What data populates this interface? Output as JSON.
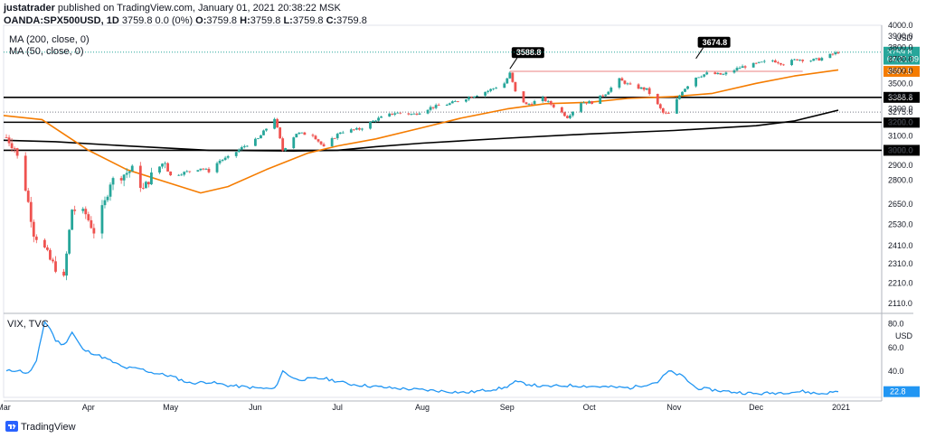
{
  "header": {
    "author": "justatrader",
    "published": "published on TradingView.com, January 01, 2021 20:38:22 MSK",
    "symbol": "OANDA:SPX500USD, 1D",
    "quote": "3759.8 0.0 (0%)",
    "o_label": "O:",
    "o_value": "3759.8",
    "h_label": "H:",
    "h_value": "3759.8",
    "l_label": "L:",
    "l_value": "3759.8",
    "c_label": "C:",
    "c_value": "3759.8"
  },
  "indicators": {
    "ma200": "MA (200, close, 0)",
    "ma50": "MA (50, close, 0)",
    "vix": "VIX, TVC"
  },
  "logo": {
    "text": "TradingView"
  },
  "colors": {
    "up": "#26a69a",
    "down": "#ef5350",
    "ma50": "#f57c00",
    "ma200": "#000000",
    "vix": "#2196f3",
    "level_line": "#000000",
    "resistance": "#ef9a9a"
  },
  "chart_data": [
    {
      "type": "candlestick",
      "title": "OANDA:SPX500USD, 1D",
      "y_scale": "log",
      "ylim": [
        2070,
        4000
      ],
      "y_ticks": [
        "4000.0",
        "3900.0",
        "3800.0",
        "3700.0",
        "3600.0",
        "3500.0",
        "3400.0",
        "3300.0",
        "3200.0",
        "3100.0",
        "3000.0",
        "2900.0",
        "2800.0",
        "2650.0",
        "2530.0",
        "2410.0",
        "2310.0",
        "2210.0",
        "2110.0"
      ],
      "x_ticks": [
        "Mar",
        "Apr",
        "May",
        "Jun",
        "Jul",
        "Aug",
        "Sep",
        "Oct",
        "Nov",
        "Dec",
        "2021"
      ],
      "x_range": [
        "2020-03-01",
        "2021-01-01"
      ],
      "price_axis_label": "USD",
      "horizontal_levels": [
        {
          "value": 3388.8,
          "label": "3388.8"
        },
        {
          "value": 3200.0,
          "label": "3200.0"
        },
        {
          "value": 3000.0,
          "label": "3000.0"
        }
      ],
      "dotted_levels": [
        {
          "value": 3275.6,
          "label": "3275.6"
        }
      ],
      "resistance_line": {
        "value": 3597.5,
        "from": "2020-09-02",
        "to": "2020-12-18"
      },
      "annotations": [
        {
          "date": "2020-09-02",
          "value": 3588.8,
          "label": "3588.8"
        },
        {
          "date": "2020-11-09",
          "value": 3674.8,
          "label": "3674.8"
        }
      ],
      "price_tags": [
        {
          "value": 3759.8,
          "label": "3759.8",
          "color": "#26a69a"
        },
        {
          "value": 3700.0,
          "label": "04:21:39",
          "color": "#26a69a"
        },
        {
          "value": 3597.5,
          "label": "3597.5",
          "color": "#f57c00"
        }
      ],
      "series": [
        {
          "name": "SPX500USD",
          "kind": "close",
          "points": [
            [
              "2020-03-02",
              3090
            ],
            [
              "2020-03-05",
              3020
            ],
            [
              "2020-03-09",
              2750
            ],
            [
              "2020-03-12",
              2480
            ],
            [
              "2020-03-16",
              2390
            ],
            [
              "2020-03-18",
              2330
            ],
            [
              "2020-03-20",
              2290
            ],
            [
              "2020-03-23",
              2230
            ],
            [
              "2020-03-26",
              2620
            ],
            [
              "2020-03-31",
              2590
            ],
            [
              "2020-04-03",
              2490
            ],
            [
              "2020-04-07",
              2660
            ],
            [
              "2020-04-09",
              2790
            ],
            [
              "2020-04-14",
              2840
            ],
            [
              "2020-04-17",
              2870
            ],
            [
              "2020-04-21",
              2740
            ],
            [
              "2020-04-24",
              2830
            ],
            [
              "2020-04-29",
              2930
            ],
            [
              "2020-05-01",
              2830
            ],
            [
              "2020-05-06",
              2850
            ],
            [
              "2020-05-12",
              2880
            ],
            [
              "2020-05-15",
              2860
            ],
            [
              "2020-05-19",
              2930
            ],
            [
              "2020-05-22",
              2950
            ],
            [
              "2020-05-28",
              3030
            ],
            [
              "2020-06-02",
              3080
            ],
            [
              "2020-06-08",
              3230
            ],
            [
              "2020-06-11",
              3000
            ],
            [
              "2020-06-16",
              3120
            ],
            [
              "2020-06-22",
              3110
            ],
            [
              "2020-06-26",
              3020
            ],
            [
              "2020-07-02",
              3130
            ],
            [
              "2020-07-09",
              3150
            ],
            [
              "2020-07-15",
              3220
            ],
            [
              "2020-07-22",
              3270
            ],
            [
              "2020-07-29",
              3260
            ],
            [
              "2020-08-04",
              3310
            ],
            [
              "2020-08-11",
              3340
            ],
            [
              "2020-08-18",
              3390
            ],
            [
              "2020-08-25",
              3440
            ],
            [
              "2020-08-31",
              3500
            ],
            [
              "2020-09-02",
              3580
            ],
            [
              "2020-09-04",
              3430
            ],
            [
              "2020-09-08",
              3330
            ],
            [
              "2020-09-14",
              3380
            ],
            [
              "2020-09-18",
              3320
            ],
            [
              "2020-09-23",
              3240
            ],
            [
              "2020-09-28",
              3350
            ],
            [
              "2020-10-02",
              3350
            ],
            [
              "2020-10-07",
              3420
            ],
            [
              "2020-10-12",
              3530
            ],
            [
              "2020-10-16",
              3480
            ],
            [
              "2020-10-22",
              3450
            ],
            [
              "2020-10-28",
              3270
            ],
            [
              "2020-10-30",
              3260
            ],
            [
              "2020-11-04",
              3440
            ],
            [
              "2020-11-09",
              3550
            ],
            [
              "2020-11-13",
              3580
            ],
            [
              "2020-11-19",
              3570
            ],
            [
              "2020-11-25",
              3630
            ],
            [
              "2020-12-01",
              3660
            ],
            [
              "2020-12-07",
              3690
            ],
            [
              "2020-12-11",
              3660
            ],
            [
              "2020-12-16",
              3700
            ],
            [
              "2020-12-21",
              3690
            ],
            [
              "2020-12-24",
              3700
            ],
            [
              "2020-12-31",
              3759.8
            ]
          ]
        },
        {
          "name": "MA (50, close, 0)",
          "kind": "line",
          "points": [
            [
              "2020-03-01",
              3250
            ],
            [
              "2020-03-15",
              3220
            ],
            [
              "2020-04-01",
              3000
            ],
            [
              "2020-04-15",
              2870
            ],
            [
              "2020-05-01",
              2780
            ],
            [
              "2020-05-12",
              2720
            ],
            [
              "2020-05-22",
              2760
            ],
            [
              "2020-06-05",
              2870
            ],
            [
              "2020-06-20",
              2980
            ],
            [
              "2020-07-01",
              3030
            ],
            [
              "2020-07-15",
              3080
            ],
            [
              "2020-08-01",
              3160
            ],
            [
              "2020-08-15",
              3230
            ],
            [
              "2020-09-01",
              3300
            ],
            [
              "2020-09-15",
              3340
            ],
            [
              "2020-10-01",
              3350
            ],
            [
              "2020-10-15",
              3380
            ],
            [
              "2020-11-01",
              3395
            ],
            [
              "2020-11-15",
              3420
            ],
            [
              "2020-12-01",
              3500
            ],
            [
              "2020-12-15",
              3560
            ],
            [
              "2020-12-31",
              3610
            ]
          ]
        },
        {
          "name": "MA (200, close, 0)",
          "kind": "line",
          "points": [
            [
              "2020-03-01",
              3070
            ],
            [
              "2020-03-20",
              3060
            ],
            [
              "2020-04-15",
              3030
            ],
            [
              "2020-05-15",
              3000
            ],
            [
              "2020-06-15",
              2995
            ],
            [
              "2020-07-01",
              3000
            ],
            [
              "2020-07-15",
              3025
            ],
            [
              "2020-08-01",
              3050
            ],
            [
              "2020-09-01",
              3085
            ],
            [
              "2020-10-01",
              3115
            ],
            [
              "2020-11-01",
              3140
            ],
            [
              "2020-12-01",
              3175
            ],
            [
              "2020-12-15",
              3210
            ],
            [
              "2020-12-31",
              3290
            ]
          ]
        }
      ]
    },
    {
      "type": "line",
      "title": "VIX, TVC",
      "axis_label": "USD",
      "ylim": [
        18,
        88
      ],
      "y_ticks": [
        "80.0",
        "60.0",
        "40.0"
      ],
      "last_value_tag": {
        "value": 22.8,
        "label": "22.8"
      },
      "series": [
        {
          "name": "VIX, TVC",
          "points": [
            [
              "2020-03-02",
              40
            ],
            [
              "2020-03-06",
              41
            ],
            [
              "2020-03-10",
              38
            ],
            [
              "2020-03-13",
              48
            ],
            [
              "2020-03-16",
              82
            ],
            [
              "2020-03-18",
              76
            ],
            [
              "2020-03-20",
              66
            ],
            [
              "2020-03-23",
              62
            ],
            [
              "2020-03-26",
              73
            ],
            [
              "2020-03-30",
              58
            ],
            [
              "2020-04-03",
              55
            ],
            [
              "2020-04-08",
              50
            ],
            [
              "2020-04-14",
              43
            ],
            [
              "2020-04-20",
              42
            ],
            [
              "2020-04-24",
              39
            ],
            [
              "2020-05-01",
              36
            ],
            [
              "2020-05-08",
              30
            ],
            [
              "2020-05-15",
              31
            ],
            [
              "2020-05-22",
              28
            ],
            [
              "2020-06-01",
              26
            ],
            [
              "2020-06-08",
              25
            ],
            [
              "2020-06-11",
              40
            ],
            [
              "2020-06-16",
              33
            ],
            [
              "2020-06-26",
              34
            ],
            [
              "2020-07-06",
              29
            ],
            [
              "2020-07-20",
              26
            ],
            [
              "2020-08-03",
              24
            ],
            [
              "2020-08-17",
              22
            ],
            [
              "2020-08-31",
              26
            ],
            [
              "2020-09-04",
              31
            ],
            [
              "2020-09-14",
              27
            ],
            [
              "2020-09-24",
              28
            ],
            [
              "2020-10-05",
              27
            ],
            [
              "2020-10-16",
              26
            ],
            [
              "2020-10-26",
              31
            ],
            [
              "2020-10-30",
              40
            ],
            [
              "2020-11-04",
              36
            ],
            [
              "2020-11-09",
              26
            ],
            [
              "2020-11-20",
              23
            ],
            [
              "2020-12-01",
              21
            ],
            [
              "2020-12-10",
              22
            ],
            [
              "2020-12-18",
              23
            ],
            [
              "2020-12-24",
              21
            ],
            [
              "2020-12-31",
              22.8
            ]
          ]
        }
      ]
    }
  ]
}
